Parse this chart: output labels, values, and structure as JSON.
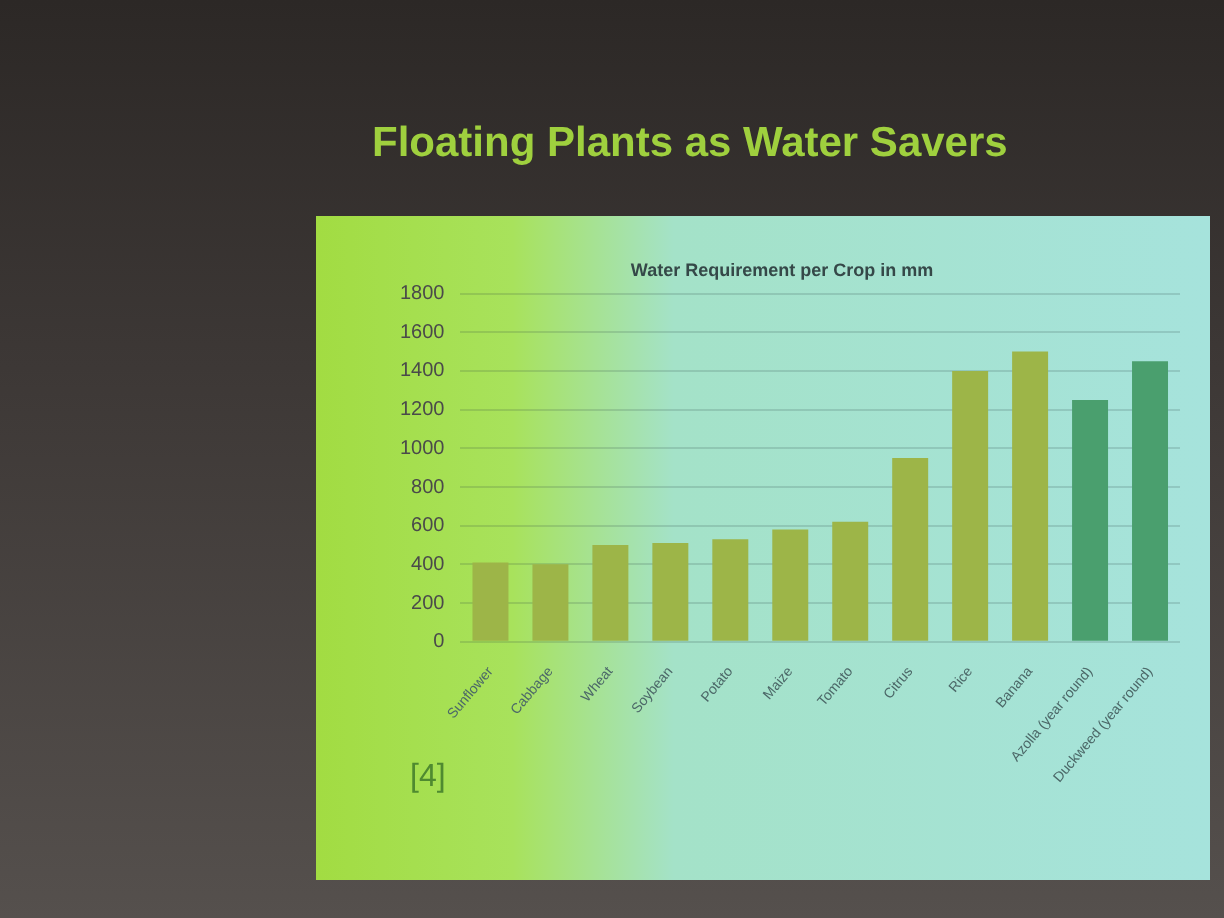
{
  "chart_data": {
    "type": "bar",
    "title": "Floating Plants as Water Savers",
    "subtitle": "Water Requirement per Crop in mm",
    "categories": [
      "Sunflower",
      "Cabbage",
      "Wheat",
      "Soybean",
      "Potato",
      "Maize",
      "Tomato",
      "Citrus",
      "Rice",
      "Banana",
      "Azolla (year round)",
      "Duckweed (year round)"
    ],
    "values": [
      410,
      400,
      500,
      510,
      530,
      580,
      620,
      950,
      1400,
      1500,
      1250,
      1450
    ],
    "colors": [
      "#9db548",
      "#9db548",
      "#9db548",
      "#9db548",
      "#9db548",
      "#9db548",
      "#9db548",
      "#9db548",
      "#9db548",
      "#9db548",
      "#4a9f6e",
      "#4a9f6e"
    ],
    "ylim": [
      0,
      1800
    ],
    "yticks": [
      0,
      200,
      400,
      600,
      800,
      1000,
      1200,
      1400,
      1600,
      1800
    ],
    "grid": "y",
    "annotations": [
      "[4]"
    ]
  }
}
